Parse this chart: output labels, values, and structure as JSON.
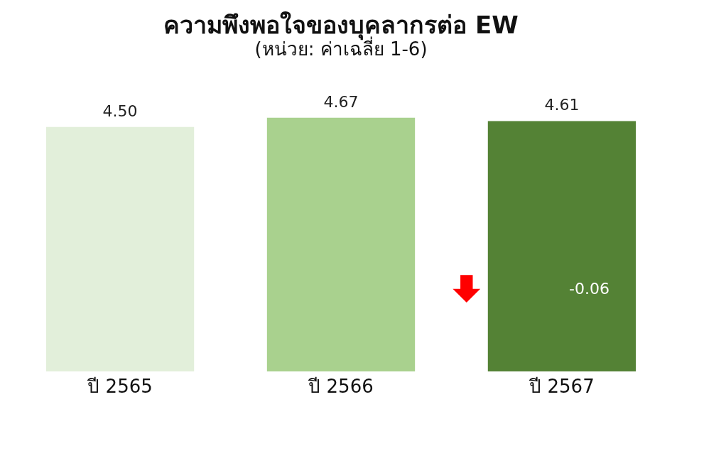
{
  "chart_data": {
    "type": "bar",
    "title": "ความพึงพอใจของบุคลากรต่อ EW",
    "subtitle": "(หน่วย: ค่าเฉลี่ย 1-6)",
    "categories": [
      "ปี 2565",
      "ปี 2566",
      "ปี 2567"
    ],
    "values": [
      4.5,
      4.67,
      4.61
    ],
    "value_labels": [
      "4.50",
      "4.67",
      "4.61"
    ],
    "colors": [
      "#e2efda",
      "#a9d18e",
      "#548235"
    ],
    "annotations": [
      "-0.06"
    ]
  }
}
